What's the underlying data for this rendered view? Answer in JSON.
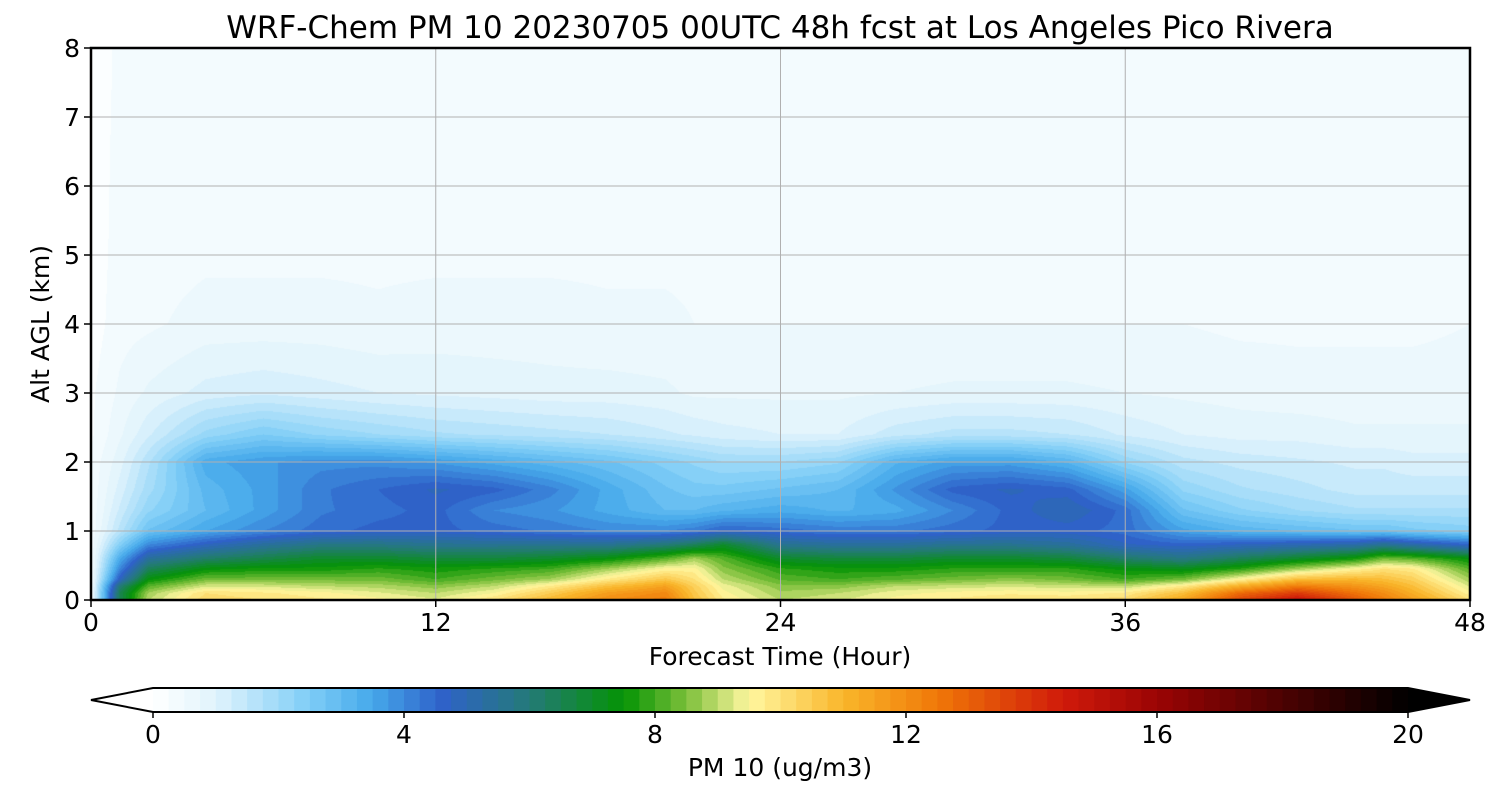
{
  "chart_data": {
    "type": "heatmap",
    "title": "WRF-Chem PM 10  20230705 00UTC 48h fcst at Los Angeles Pico Rivera",
    "xlabel": "Forecast Time (Hour)",
    "ylabel": "Alt AGL (km)",
    "xlim": [
      0,
      48
    ],
    "ylim": [
      0,
      8
    ],
    "xticks": [
      "0",
      "12",
      "24",
      "36",
      "48"
    ],
    "yticks": [
      "0",
      "1",
      "2",
      "3",
      "4",
      "5",
      "6",
      "7",
      "8"
    ],
    "grid": true,
    "colorbar": {
      "label": "PM 10  (ug/m3)",
      "range": [
        0,
        20
      ],
      "ticks": [
        "0",
        "4",
        "8",
        "12",
        "16",
        "20"
      ],
      "extend": "both",
      "stops": [
        {
          "value": 0,
          "color": "#ffffff"
        },
        {
          "value": 1,
          "color": "#e0f3fc"
        },
        {
          "value": 2.5,
          "color": "#7ecdf6"
        },
        {
          "value": 3.5,
          "color": "#45a8ea"
        },
        {
          "value": 4.6,
          "color": "#2f62c9"
        },
        {
          "value": 6,
          "color": "#247a78"
        },
        {
          "value": 7.5,
          "color": "#049304"
        },
        {
          "value": 8.5,
          "color": "#7cbf3a"
        },
        {
          "value": 9.5,
          "color": "#fff7a0"
        },
        {
          "value": 11,
          "color": "#f9b62a"
        },
        {
          "value": 12.5,
          "color": "#f07808"
        },
        {
          "value": 14.5,
          "color": "#d01a0a"
        },
        {
          "value": 16,
          "color": "#9b0404"
        },
        {
          "value": 18,
          "color": "#4c0202"
        },
        {
          "value": 20,
          "color": "#000000"
        }
      ]
    },
    "field_profiles": {
      "hours": [
        0,
        1,
        2,
        4,
        6,
        8,
        10,
        12,
        14,
        16,
        18,
        20,
        21,
        22,
        24,
        26,
        28,
        30,
        32,
        34,
        36,
        38,
        40,
        42,
        44,
        45,
        46,
        48
      ],
      "altitudes_km": [
        0,
        0.1,
        0.2,
        0.3,
        0.45,
        0.6,
        0.8,
        1.0,
        1.3,
        1.6,
        2.0,
        2.4,
        3.0,
        4.0,
        5.0,
        8.0
      ],
      "values": [
        [
          0.3,
          0.3,
          0.3,
          0.3,
          0.3,
          0.3,
          0.3,
          0.3,
          0.3,
          0.3,
          0.3,
          0.2,
          0.2,
          0.1,
          0.1,
          0.1
        ],
        [
          6.5,
          6.5,
          6.0,
          4.8,
          4.0,
          3.4,
          2.4,
          1.6,
          1.3,
          1.1,
          0.9,
          0.7,
          0.55,
          0.4,
          0.35,
          0.3
        ],
        [
          9.0,
          8.8,
          8.2,
          7.4,
          6.4,
          5.4,
          4.0,
          2.8,
          2.2,
          1.9,
          1.7,
          1.2,
          0.8,
          0.45,
          0.4,
          0.35
        ],
        [
          10.2,
          10.0,
          9.2,
          8.4,
          7.4,
          6.2,
          4.8,
          3.5,
          3.0,
          3.1,
          3.4,
          2.1,
          1.1,
          0.6,
          0.45,
          0.4
        ],
        [
          10.0,
          9.8,
          9.2,
          8.4,
          7.6,
          6.6,
          5.4,
          4.0,
          3.6,
          3.6,
          3.7,
          2.5,
          1.2,
          0.6,
          0.45,
          0.4
        ],
        [
          9.8,
          9.6,
          9.0,
          8.4,
          7.6,
          7.0,
          5.8,
          4.4,
          4.2,
          4.2,
          3.9,
          2.2,
          1.1,
          0.6,
          0.45,
          0.4
        ],
        [
          9.6,
          9.3,
          8.9,
          8.4,
          7.8,
          7.0,
          5.8,
          4.6,
          4.4,
          4.5,
          3.9,
          2.0,
          1.0,
          0.55,
          0.45,
          0.4
        ],
        [
          9.3,
          9.0,
          8.6,
          8.0,
          7.6,
          6.8,
          5.6,
          4.6,
          4.6,
          4.8,
          3.7,
          1.8,
          0.95,
          0.6,
          0.45,
          0.4
        ],
        [
          10.0,
          9.5,
          9.0,
          8.4,
          7.8,
          6.8,
          5.6,
          4.4,
          4.0,
          4.6,
          3.4,
          1.7,
          0.9,
          0.6,
          0.45,
          0.4
        ],
        [
          11.0,
          10.5,
          9.8,
          8.8,
          8.0,
          7.0,
          5.6,
          4.2,
          3.8,
          4.1,
          3.1,
          1.6,
          0.85,
          0.6,
          0.45,
          0.4
        ],
        [
          12.0,
          11.6,
          10.8,
          9.8,
          8.8,
          7.4,
          5.6,
          4.0,
          3.4,
          3.4,
          2.8,
          1.5,
          0.85,
          0.55,
          0.45,
          0.4
        ],
        [
          12.4,
          12.1,
          11.5,
          10.6,
          9.6,
          8.2,
          6.0,
          4.0,
          3.0,
          2.8,
          2.4,
          1.3,
          0.8,
          0.55,
          0.45,
          0.4
        ],
        [
          10.8,
          10.6,
          10.4,
          10.0,
          9.6,
          8.8,
          6.4,
          4.2,
          3.0,
          2.6,
          2.2,
          1.2,
          0.7,
          0.5,
          0.45,
          0.4
        ],
        [
          9.8,
          9.6,
          9.4,
          9.0,
          8.6,
          8.2,
          7.0,
          4.6,
          3.2,
          2.6,
          2.0,
          1.1,
          0.7,
          0.5,
          0.45,
          0.4
        ],
        [
          9.0,
          8.8,
          8.6,
          8.2,
          7.8,
          7.0,
          5.6,
          4.4,
          3.4,
          2.8,
          2.0,
          1.0,
          0.7,
          0.5,
          0.45,
          0.4
        ],
        [
          9.2,
          9.0,
          8.6,
          8.0,
          7.6,
          6.8,
          5.4,
          4.2,
          3.2,
          3.0,
          2.2,
          1.0,
          0.7,
          0.5,
          0.4,
          0.4
        ],
        [
          9.6,
          9.4,
          9.0,
          8.2,
          7.6,
          6.8,
          5.4,
          4.2,
          3.4,
          3.8,
          3.2,
          1.4,
          0.75,
          0.5,
          0.4,
          0.4
        ],
        [
          9.8,
          9.6,
          9.1,
          8.4,
          7.8,
          7.0,
          5.6,
          4.4,
          4.0,
          4.6,
          3.6,
          1.6,
          0.8,
          0.5,
          0.4,
          0.4
        ],
        [
          10.0,
          9.7,
          9.2,
          8.6,
          7.8,
          7.0,
          5.6,
          4.6,
          4.6,
          4.8,
          3.6,
          1.6,
          0.8,
          0.5,
          0.4,
          0.4
        ],
        [
          10.0,
          9.6,
          9.1,
          8.4,
          7.8,
          6.8,
          5.4,
          4.6,
          5.0,
          4.6,
          3.2,
          1.5,
          0.8,
          0.5,
          0.4,
          0.4
        ],
        [
          10.2,
          9.8,
          9.0,
          8.0,
          7.4,
          6.2,
          4.8,
          4.4,
          4.4,
          3.6,
          2.2,
          1.2,
          0.75,
          0.5,
          0.4,
          0.4
        ],
        [
          11.4,
          10.8,
          9.8,
          8.4,
          7.2,
          5.8,
          4.6,
          3.6,
          2.8,
          2.2,
          1.6,
          1.0,
          0.7,
          0.5,
          0.4,
          0.4
        ],
        [
          13.6,
          12.8,
          11.2,
          9.6,
          7.8,
          6.4,
          4.8,
          3.2,
          2.3,
          1.8,
          1.4,
          0.9,
          0.65,
          0.45,
          0.4,
          0.4
        ],
        [
          14.8,
          13.8,
          12.4,
          10.8,
          8.8,
          7.0,
          5.0,
          3.0,
          2.0,
          1.6,
          1.3,
          0.9,
          0.6,
          0.45,
          0.4,
          0.4
        ],
        [
          13.2,
          12.6,
          11.8,
          11.0,
          9.6,
          7.6,
          5.2,
          2.8,
          1.8,
          1.4,
          1.2,
          0.8,
          0.6,
          0.45,
          0.4,
          0.4
        ],
        [
          12.4,
          12.0,
          11.4,
          10.8,
          10.0,
          8.4,
          5.6,
          2.8,
          1.8,
          1.4,
          1.2,
          0.8,
          0.6,
          0.45,
          0.4,
          0.4
        ],
        [
          11.6,
          11.2,
          10.8,
          10.4,
          9.8,
          8.2,
          5.2,
          2.6,
          1.8,
          1.4,
          1.1,
          0.8,
          0.6,
          0.45,
          0.4,
          0.4
        ],
        [
          10.0,
          9.6,
          9.2,
          8.8,
          8.2,
          7.4,
          4.6,
          2.4,
          1.8,
          1.4,
          1.1,
          0.8,
          0.6,
          0.5,
          0.4,
          0.4
        ]
      ]
    }
  }
}
